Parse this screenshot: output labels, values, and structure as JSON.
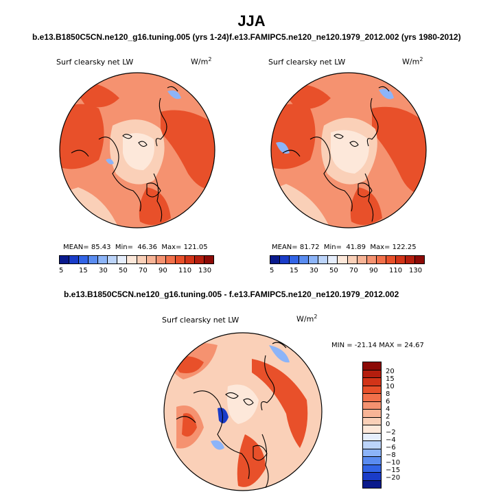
{
  "season": "JJA",
  "panel1": {
    "case": "b.e13.B1850C5CN.ne120_g16.tuning.005 (yrs 1-24)",
    "var_label": "Surf clearsky net LW",
    "units": "W/m",
    "units_exp": "2",
    "mean_label": "MEAN=",
    "mean": "85.43",
    "min_label": "Min=",
    "min": "46.36",
    "max_label": "Max=",
    "max": "121.05"
  },
  "panel2": {
    "case": "f.e13.FAMIPC5.ne120_ne120.1979_2012.002 (yrs 1980-2012)",
    "var_label": "Surf clearsky net LW",
    "units": "W/m",
    "units_exp": "2",
    "mean_label": "MEAN=",
    "mean": "81.72",
    "min_label": "Min=",
    "min": "41.89",
    "max_label": "Max=",
    "max": "122.25"
  },
  "diff": {
    "title": "b.e13.B1850C5CN.ne120_g16.tuning.005 - f.e13.FAMIPC5.ne120_ne120.1979_2012.002",
    "var_label": "Surf clearsky net LW",
    "units": "W/m",
    "units_exp": "2",
    "stats": "MIN = -21.14 MAX =  24.67"
  },
  "colorbar_abs": {
    "colors": [
      "#0a1a8c",
      "#1a3cc8",
      "#3264e6",
      "#5a8cf0",
      "#8cb4f8",
      "#bcd4fa",
      "#e6eefc",
      "#fde8da",
      "#fad0b8",
      "#f8b496",
      "#f59270",
      "#f2704a",
      "#e8502a",
      "#d23418",
      "#b41e0e",
      "#8c0a06"
    ],
    "ticks": [
      "5",
      "15",
      "30",
      "50",
      "70",
      "90",
      "110",
      "130"
    ]
  },
  "colorbar_diff": {
    "colors": [
      "#8c0a06",
      "#b41e0e",
      "#d23418",
      "#e8502a",
      "#f2704a",
      "#f59270",
      "#f8b496",
      "#fad0b8",
      "#fde8da",
      "#e6eefc",
      "#bcd4fa",
      "#8cb4f8",
      "#5a8cf0",
      "#3264e6",
      "#1a3cc8",
      "#0a1a8c"
    ],
    "ticks": [
      "20",
      "15",
      "10",
      "8",
      "6",
      "4",
      "2",
      "0",
      "−2",
      "−4",
      "−6",
      "−8",
      "−10",
      "−15",
      "−20"
    ]
  },
  "map_colors": {
    "deep": "#e8502a",
    "mid": "#f59270",
    "light": "#fad0b8",
    "pale": "#fde8da",
    "blue": "#8cb4f8",
    "darkblue": "#1a3cc8",
    "coast": "#000000"
  }
}
